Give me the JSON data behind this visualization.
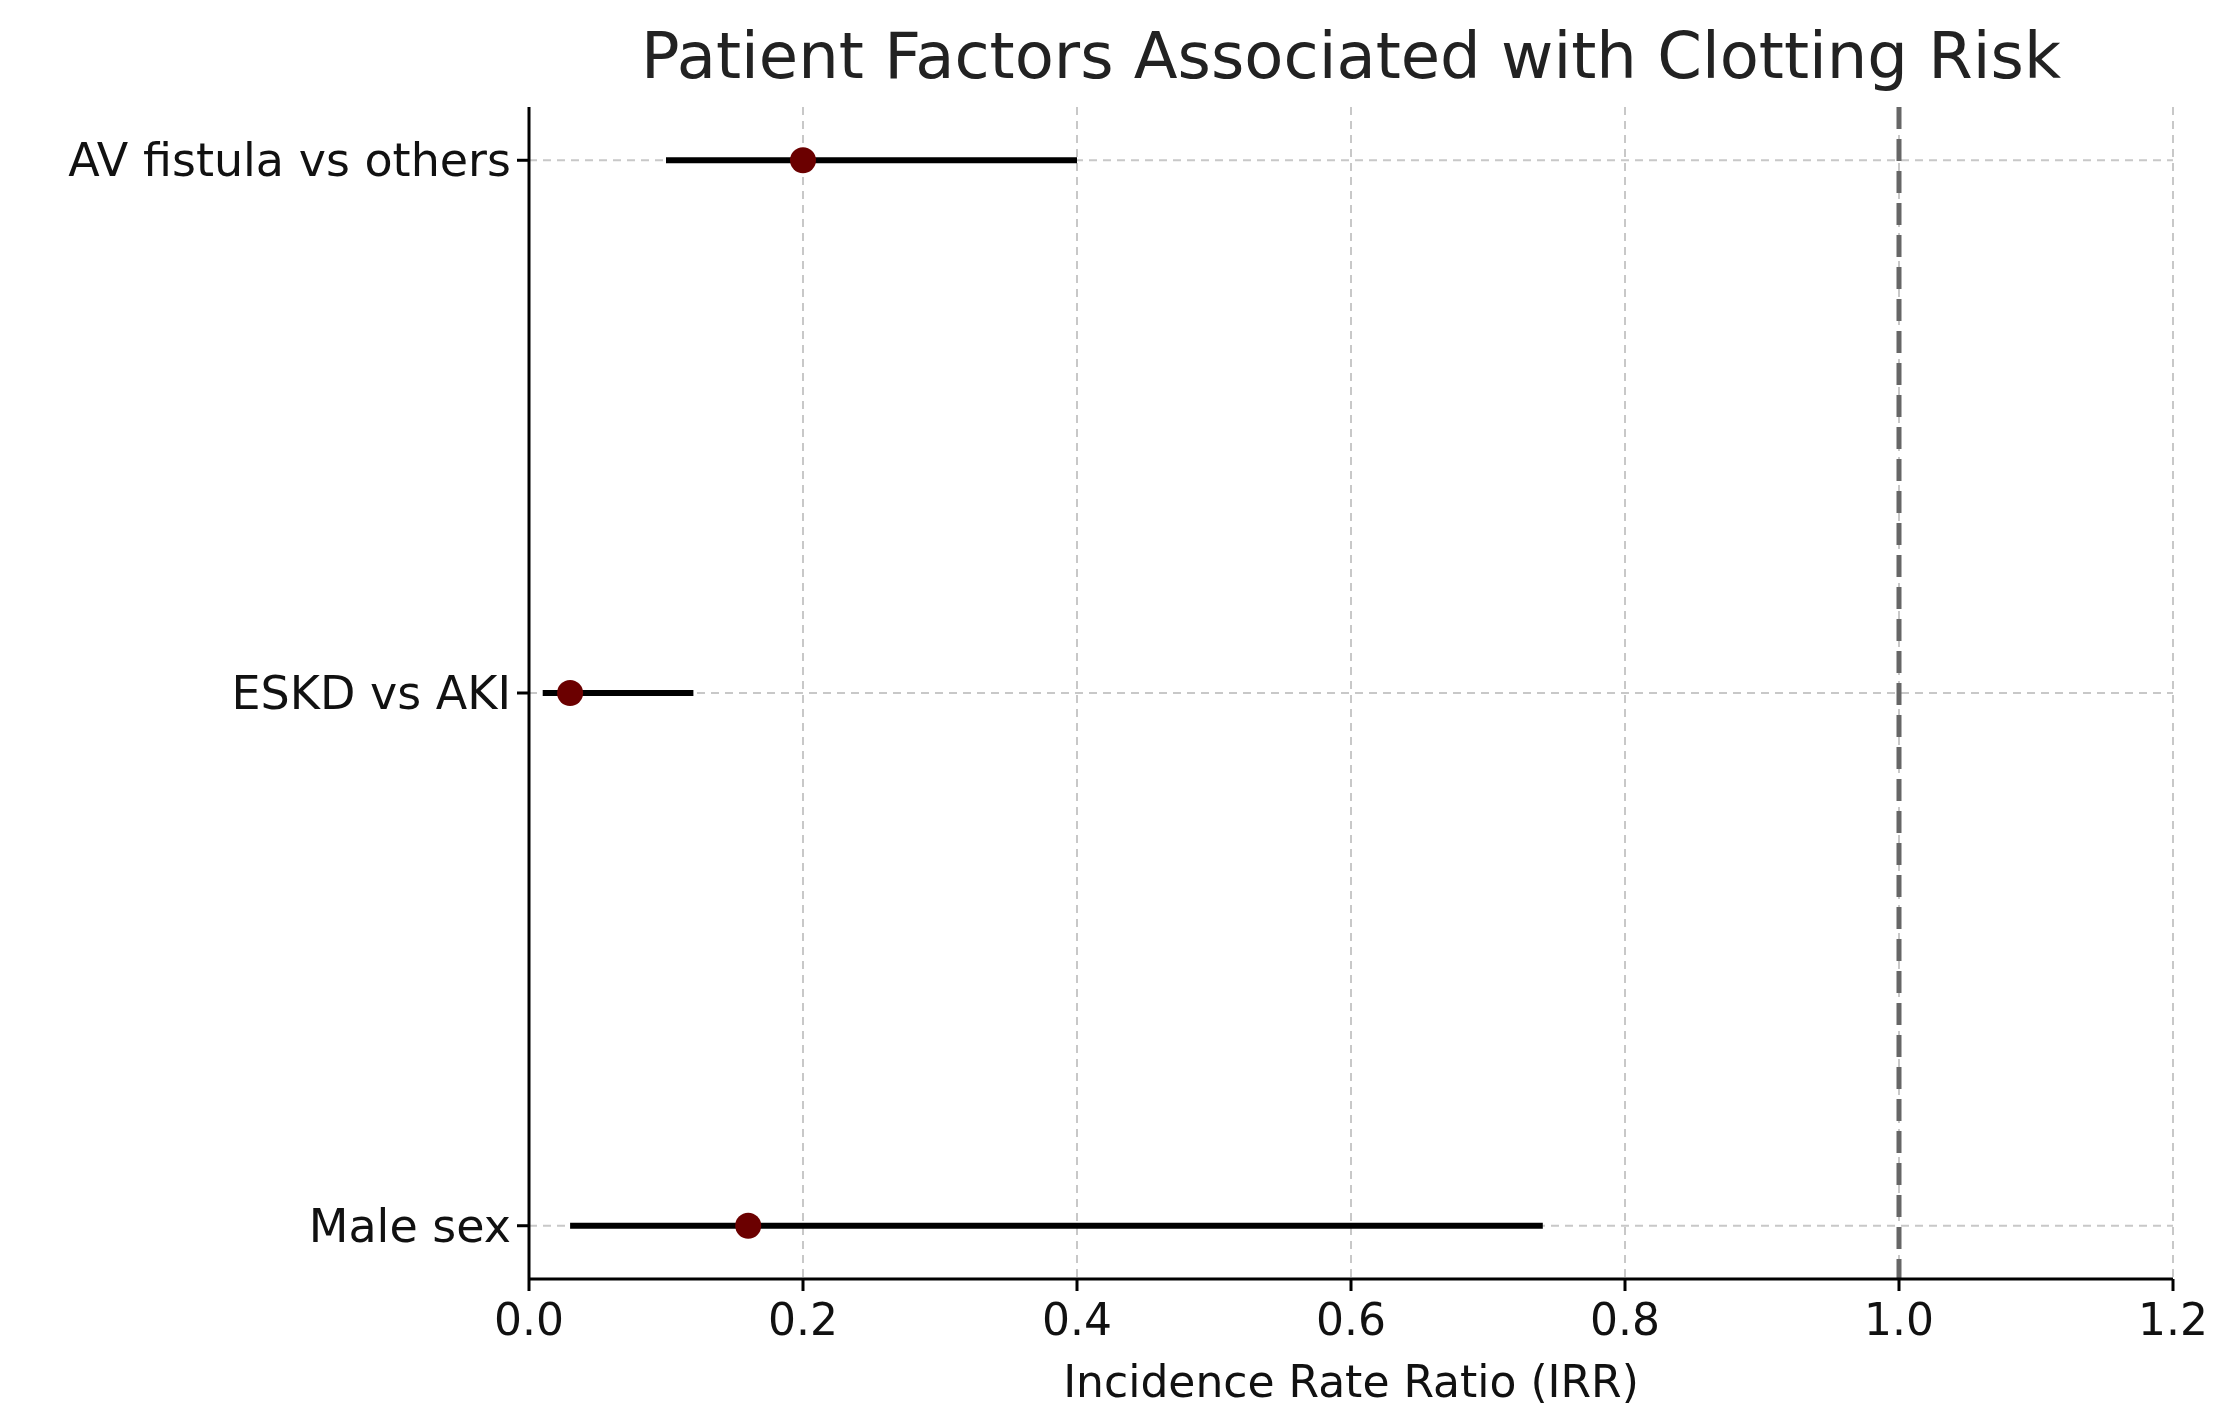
{
  "chart_data": {
    "type": "scatter",
    "orientation": "horizontal",
    "title": "Patient Factors Associated with Clotting Risk",
    "xlabel": "Incidence Rate Ratio (IRR)",
    "categories": [
      "AV fistula vs others",
      "ESKD vs AKI",
      "Male sex"
    ],
    "series": [
      {
        "color": "#6b0000",
        "values": [
          0.2,
          0.03,
          0.16
        ],
        "errors": [
          [
            0.1,
            0.4
          ],
          [
            0.01,
            0.12
          ],
          [
            0.03,
            0.74
          ]
        ]
      }
    ],
    "xlim": [
      0,
      1.2
    ],
    "xticks": [
      {
        "value": 0,
        "label": "0.0"
      },
      {
        "value": 0.2,
        "label": "0.2"
      },
      {
        "value": 0.4,
        "label": "0.4"
      },
      {
        "value": 0.6,
        "label": "0.6"
      },
      {
        "value": 0.8,
        "label": "0.8"
      },
      {
        "value": 1,
        "label": "1.0"
      },
      {
        "value": 1.2,
        "label": "1.2"
      }
    ],
    "ref_lines": [
      {
        "axis": "x",
        "value": 1,
        "color": "#666666",
        "line_style": "dashed"
      }
    ],
    "grid": true,
    "marker": "circle"
  }
}
